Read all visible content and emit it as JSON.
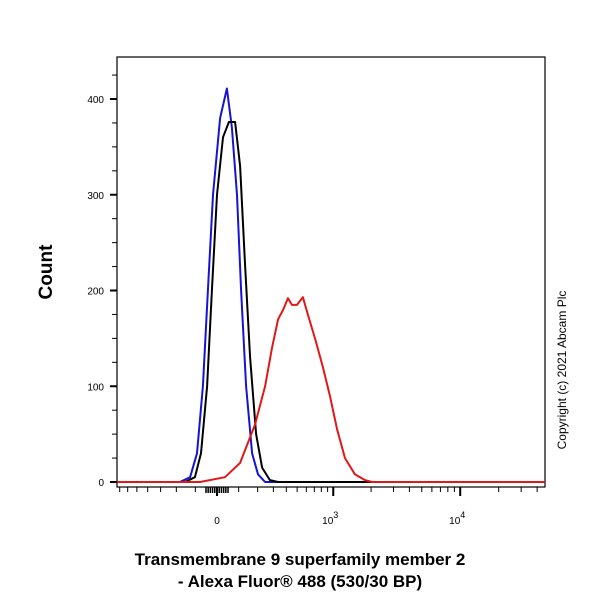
{
  "chart_data": {
    "type": "line",
    "title": "",
    "xlabel_line1": "Transmembrane 9 superfamily member 2",
    "xlabel_line2": "- Alexa Fluor® 488 (530/30 BP)",
    "ylabel": "Count",
    "x_scale": "biexponential",
    "xlim": [
      -735,
      46000
    ],
    "ylim": [
      -5,
      444
    ],
    "x_ticks": [
      {
        "value": 0,
        "label": "0"
      },
      {
        "value": 1000,
        "label": "10",
        "sup": "3"
      },
      {
        "value": 10000,
        "label": "10",
        "sup": "4"
      }
    ],
    "y_ticks": [
      0,
      100,
      200,
      300,
      400
    ],
    "grid": false,
    "series": [
      {
        "color": "#1414d2",
        "x": [
          -180,
          -126,
          -92,
          -64,
          -41,
          -18,
          14,
          45,
          68,
          92,
          112,
          137,
          169,
          202,
          245
        ],
        "y": [
          0,
          5,
          30,
          100,
          200,
          300,
          380,
          411,
          370,
          300,
          200,
          100,
          30,
          8,
          0
        ]
      },
      {
        "color": "#000000",
        "x": [
          -152,
          -102,
          -73,
          -45,
          -23,
          0,
          27,
          54,
          83,
          107,
          131,
          158,
          191,
          226,
          276,
          334
        ],
        "y": [
          0,
          5,
          30,
          100,
          200,
          300,
          360,
          376,
          376,
          330,
          230,
          130,
          50,
          15,
          2,
          0
        ]
      },
      {
        "color": "#e01818",
        "x": [
          -78,
          36,
          107,
          185,
          245,
          290,
          334,
          374,
          414,
          450,
          498,
          561,
          617,
          709,
          824,
          940,
          1073,
          1243,
          1490,
          1790,
          2035
        ],
        "y": [
          0,
          5,
          20,
          60,
          100,
          140,
          170,
          180,
          192,
          185,
          185,
          193,
          175,
          150,
          120,
          90,
          55,
          25,
          8,
          2,
          0
        ]
      }
    ],
    "annotations": [
      "Copyright (c) 2021 Abcam Plc"
    ]
  }
}
